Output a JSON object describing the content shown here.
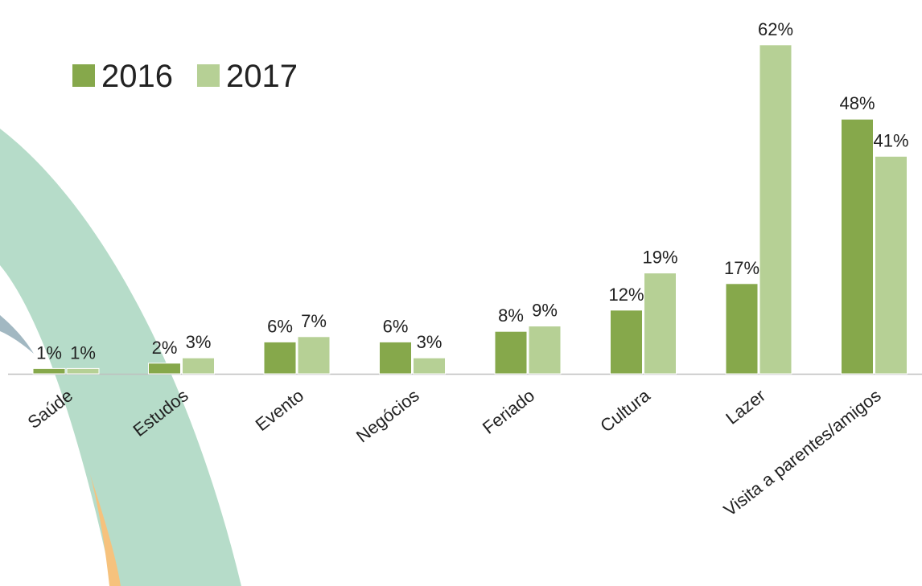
{
  "chart_data": {
    "type": "bar",
    "categories": [
      "Saúde",
      "Estudos",
      "Evento",
      "Negócios",
      "Feriado",
      "Cultura",
      "Lazer",
      "Visita a parentes/amigos"
    ],
    "series": [
      {
        "name": "2016",
        "color": "#86a84b",
        "values": [
          1,
          2,
          6,
          6,
          8,
          12,
          17,
          48
        ],
        "value_labels": [
          "1%",
          "2%",
          "6%",
          "6%",
          "8%",
          "12%",
          "17%",
          "48%"
        ]
      },
      {
        "name": "2017",
        "color": "#b6d095",
        "values": [
          1,
          3,
          7,
          3,
          9,
          19,
          62,
          41
        ],
        "value_labels": [
          "1%",
          "3%",
          "7%",
          "3%",
          "9%",
          "19%",
          "62%",
          "41%"
        ]
      }
    ],
    "legend": "top-left"
  }
}
